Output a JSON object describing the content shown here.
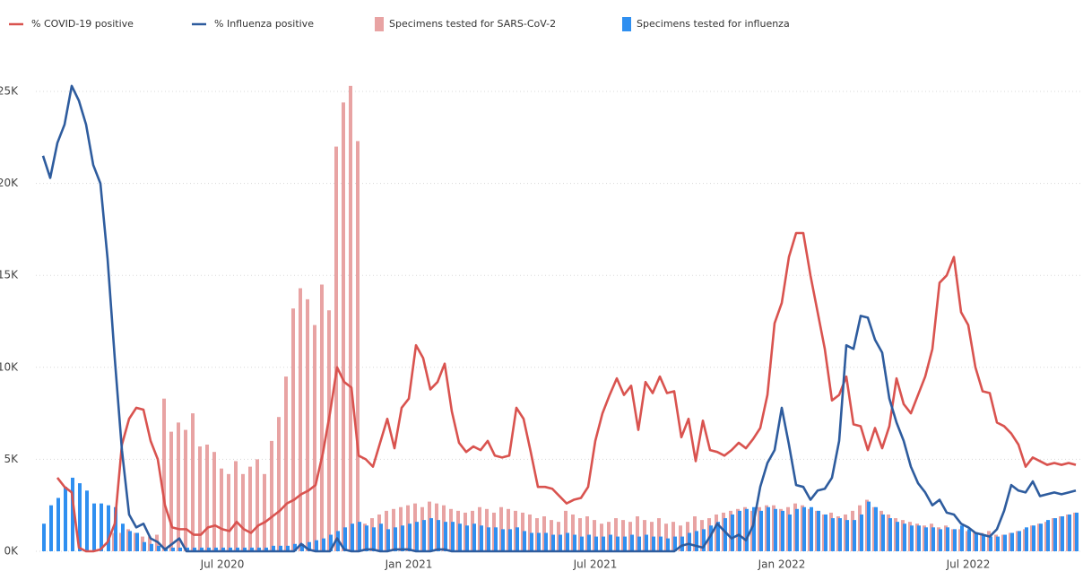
{
  "chart_data": {
    "type": "combo",
    "categories": [
      null,
      null,
      null,
      null,
      null,
      null,
      null,
      null,
      null,
      null,
      null,
      null,
      null,
      null,
      null,
      null,
      null,
      null,
      null,
      null,
      null,
      null,
      null,
      null,
      null,
      "Jul 2020",
      null,
      null,
      null,
      null,
      null,
      null,
      null,
      null,
      null,
      null,
      null,
      null,
      null,
      null,
      null,
      null,
      null,
      null,
      null,
      null,
      null,
      null,
      null,
      null,
      null,
      "Jan 2021",
      null,
      null,
      null,
      null,
      null,
      null,
      null,
      null,
      null,
      null,
      null,
      null,
      null,
      null,
      null,
      null,
      null,
      null,
      null,
      null,
      null,
      null,
      null,
      null,
      null,
      "Jul 2021",
      null,
      null,
      null,
      null,
      null,
      null,
      null,
      null,
      null,
      null,
      null,
      null,
      null,
      null,
      null,
      null,
      null,
      null,
      null,
      null,
      null,
      null,
      null,
      null,
      null,
      "Jan 2022",
      null,
      null,
      null,
      null,
      null,
      null,
      null,
      null,
      null,
      null,
      null,
      null,
      null,
      null,
      null,
      null,
      null,
      null,
      null,
      null,
      null,
      null,
      null,
      null,
      null,
      "Jul 2022",
      null,
      null,
      null,
      null,
      null,
      null,
      null,
      null,
      null,
      null,
      null,
      null,
      null,
      null,
      null
    ],
    "series": [
      {
        "name": "% COVID-19 positive",
        "type": "line",
        "color": "#d9534f",
        "values": [
          null,
          null,
          4,
          3.5,
          3.2,
          0.2,
          0,
          0,
          0.1,
          0.5,
          1.5,
          5.8,
          7.2,
          7.8,
          7.7,
          6,
          5,
          2.5,
          1.3,
          1.2,
          1.2,
          0.9,
          0.9,
          1.3,
          1.4,
          1.2,
          1.1,
          1.6,
          1.2,
          1,
          1.4,
          1.6,
          1.9,
          2.2,
          2.6,
          2.8,
          3.1,
          3.3,
          3.6,
          5.3,
          7.5,
          10,
          9.2,
          8.9,
          5.2,
          5,
          4.6,
          5.9,
          7.2,
          5.6,
          7.8,
          8.3,
          11.2,
          10.5,
          8.8,
          9.2,
          10.2,
          7.6,
          5.9,
          5.4,
          5.7,
          5.5,
          6,
          5.2,
          5.1,
          5.2,
          7.8,
          7.2,
          5.4,
          3.5,
          3.5,
          3.4,
          3,
          2.6,
          2.8,
          2.9,
          3.5,
          6,
          7.5,
          8.5,
          9.4,
          8.5,
          9,
          6.6,
          9.2,
          8.6,
          9.5,
          8.6,
          8.7,
          6.2,
          7.2,
          4.9,
          7.1,
          5.5,
          5.4,
          5.2,
          5.5,
          5.9,
          5.6,
          6.1,
          6.7,
          8.5,
          12.4,
          13.5,
          16,
          17.3,
          17.3,
          15,
          13,
          11,
          8.2,
          8.5,
          9.5,
          6.9,
          6.8,
          5.5,
          6.7,
          5.6,
          6.8,
          9.4,
          8,
          7.5,
          8.5,
          9.5,
          11,
          14.6,
          15,
          16,
          13,
          12.3,
          10,
          8.7,
          8.6,
          7,
          6.8,
          6.4,
          5.8,
          4.6,
          5.1,
          4.9,
          4.7,
          4.8,
          4.7,
          4.8,
          4.7
        ]
      },
      {
        "name": "% Influenza positive",
        "type": "line",
        "color": "#2e5c9e",
        "values": [
          21.5,
          20.3,
          22.2,
          23.2,
          25.3,
          24.5,
          23.2,
          21,
          20,
          15.9,
          10.5,
          5.5,
          2,
          1.3,
          1.5,
          0.7,
          0.5,
          0.1,
          0.4,
          0.7,
          0,
          0,
          0,
          0,
          0,
          0,
          0,
          0,
          0,
          0,
          0,
          0,
          0,
          0,
          0,
          0,
          0.4,
          0.1,
          0,
          0,
          0,
          0.7,
          0.1,
          0,
          0,
          0.1,
          0.1,
          0,
          0,
          0.1,
          0.1,
          0.1,
          0,
          0,
          0,
          0.1,
          0.1,
          0,
          0,
          0,
          0,
          0,
          0,
          0,
          0,
          0,
          0,
          0,
          0,
          0,
          0,
          0,
          0,
          0,
          0,
          0,
          0,
          0,
          0,
          0,
          0,
          0,
          0,
          0,
          0,
          0,
          0,
          0,
          0,
          0.3,
          0.4,
          0.3,
          0.2,
          0.8,
          1.5,
          1.1,
          0.7,
          0.9,
          0.6,
          1.4,
          3.5,
          4.8,
          5.5,
          7.8,
          5.8,
          3.6,
          3.5,
          2.8,
          3.3,
          3.4,
          4,
          6,
          11.2,
          11,
          12.8,
          12.7,
          11.5,
          10.8,
          8.3,
          7,
          6,
          4.6,
          3.7,
          3.2,
          2.5,
          2.8,
          2.1,
          2,
          1.5,
          1.3,
          1,
          0.9,
          0.8,
          1.2,
          2.2,
          3.6,
          3.3,
          3.2,
          3.8,
          3,
          3.1,
          3.2,
          3.1,
          3.2,
          3.3
        ]
      },
      {
        "name": "Specimens tested for SARS-CoV-2",
        "type": "bar",
        "color": "#e8a3a3",
        "values": [
          0,
          0,
          0,
          0,
          0,
          0,
          0,
          0,
          0,
          0,
          1,
          1,
          1.2,
          1,
          0.8,
          0.8,
          0.9,
          8.3,
          6.5,
          7,
          6.6,
          7.5,
          5.7,
          5.8,
          5.4,
          4.5,
          4.2,
          4.9,
          4.2,
          4.6,
          5,
          4.2,
          6,
          7.3,
          9.5,
          13.2,
          14.3,
          13.7,
          12.3,
          14.5,
          13.1,
          22,
          24.4,
          25.3,
          22.3,
          1.5,
          1.8,
          2,
          2.2,
          2.3,
          2.4,
          2.5,
          2.6,
          2.4,
          2.7,
          2.6,
          2.5,
          2.3,
          2.2,
          2.1,
          2.2,
          2.4,
          2.3,
          2.1,
          2.4,
          2.3,
          2.2,
          2.1,
          2,
          1.8,
          1.9,
          1.7,
          1.6,
          2.2,
          2,
          1.8,
          1.9,
          1.7,
          1.5,
          1.6,
          1.8,
          1.7,
          1.6,
          1.9,
          1.7,
          1.6,
          1.8,
          1.5,
          1.6,
          1.4,
          1.6,
          1.9,
          1.7,
          1.8,
          2,
          2.1,
          2.2,
          2.3,
          2.4,
          2.2,
          2.4,
          2.5,
          2.5,
          2.3,
          2.4,
          2.6,
          2.5,
          2.3,
          2.2,
          2,
          2.1,
          1.9,
          2,
          2.2,
          2.5,
          2.8,
          2.4,
          2.2,
          2,
          1.8,
          1.7,
          1.6,
          1.5,
          1.4,
          1.5,
          1.3,
          1.4,
          1.2,
          1.2,
          1.1,
          1,
          1,
          1.1,
          0.9,
          0.9,
          1,
          1.1,
          1.2,
          1.4,
          1.5,
          1.6,
          1.8,
          1.9,
          2,
          2.1
        ]
      },
      {
        "name": "Specimens tested for influenza",
        "type": "bar",
        "color": "#2f8ff0",
        "values": [
          1.5,
          2.5,
          2.9,
          3.5,
          4,
          3.7,
          3.3,
          2.6,
          2.6,
          2.5,
          2.4,
          1.5,
          1.1,
          1,
          0.5,
          0.4,
          0.3,
          0.2,
          0.2,
          0.2,
          0.2,
          0.2,
          0.2,
          0.2,
          0.2,
          0.2,
          0.2,
          0.2,
          0.2,
          0.2,
          0.2,
          0.2,
          0.3,
          0.3,
          0.3,
          0.4,
          0.4,
          0.5,
          0.6,
          0.7,
          0.9,
          1.1,
          1.3,
          1.5,
          1.6,
          1.4,
          1.3,
          1.5,
          1.2,
          1.3,
          1.4,
          1.5,
          1.6,
          1.7,
          1.8,
          1.7,
          1.6,
          1.6,
          1.5,
          1.4,
          1.5,
          1.4,
          1.3,
          1.3,
          1.2,
          1.2,
          1.3,
          1.1,
          1,
          1,
          1,
          0.9,
          0.9,
          1,
          0.9,
          0.8,
          0.9,
          0.8,
          0.8,
          0.9,
          0.8,
          0.8,
          0.9,
          0.8,
          0.9,
          0.8,
          0.8,
          0.7,
          0.8,
          0.8,
          1,
          1.1,
          1.2,
          1.4,
          1.6,
          1.8,
          2,
          2.2,
          2.3,
          2.4,
          2.2,
          2.4,
          2.3,
          2.2,
          2,
          2.3,
          2.4,
          2.4,
          2.2,
          2,
          1.8,
          1.8,
          1.7,
          1.7,
          2,
          2.7,
          2.4,
          2,
          1.8,
          1.6,
          1.5,
          1.4,
          1.4,
          1.3,
          1.3,
          1.2,
          1.3,
          1.2,
          1.4,
          1.2,
          1,
          0.9,
          0.8,
          0.8,
          0.9,
          1,
          1.1,
          1.3,
          1.4,
          1.5,
          1.7,
          1.8,
          1.9,
          2,
          2.1
        ]
      }
    ],
    "ylim": [
      0,
      25
    ],
    "yticks": [
      {
        "value": 0,
        "label": "0K"
      },
      {
        "value": 5,
        "label": "5K"
      },
      {
        "value": 10,
        "label": "10K"
      },
      {
        "value": 15,
        "label": "15K"
      },
      {
        "value": 20,
        "label": "20K"
      },
      {
        "value": 25,
        "label": "25K"
      }
    ],
    "grid": true
  }
}
